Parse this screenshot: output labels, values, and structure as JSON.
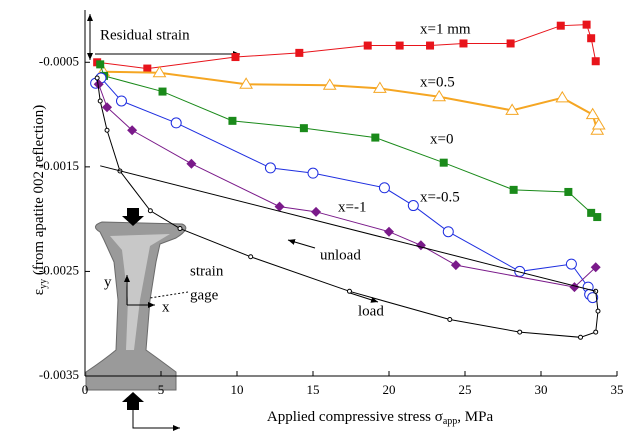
{
  "chart_data": {
    "type": "line",
    "x_label": {
      "text": "Applied compressive stress σ",
      "sub": "app",
      "tail": ", MPa"
    },
    "y_label": {
      "text": "ε",
      "sub": "yy",
      "tail": " (from apatite 002 reflection)"
    },
    "xlim": [
      0,
      35
    ],
    "xticks": [
      0,
      5,
      10,
      15,
      20,
      25,
      30,
      35
    ],
    "ylim": [
      -0.0035,
      0
    ],
    "yticks": [
      -0.0005,
      -0.0015,
      -0.0025,
      -0.0035
    ],
    "annotations": [
      "Residual strain",
      "strain",
      "gage",
      "y",
      "x"
    ],
    "series": [
      {
        "name": "x=1 mm",
        "color": "#e8141b",
        "marker": "square",
        "x": [
          0.8,
          4.1,
          9.9,
          14.1,
          18.6,
          20.7,
          22.7,
          24.9,
          28.0,
          31.3,
          33.0,
          33.3,
          33.6
        ],
        "values": [
          -0.0005,
          -0.00056,
          -0.00045,
          -0.00041,
          -0.00034,
          -0.00034,
          -0.00034,
          -0.00032,
          -0.00032,
          -0.00015,
          -0.00014,
          -0.00027,
          -0.00049
        ]
      },
      {
        "name": "x=0.5",
        "color": "#f5a623",
        "marker": "triangle",
        "x": [
          1.2,
          4.9,
          10.6,
          16.1,
          19.4,
          23.3,
          28.1,
          31.4,
          33.4,
          33.7,
          33.8
        ],
        "values": [
          -0.00059,
          -0.0006,
          -0.00071,
          -0.00072,
          -0.00075,
          -0.00083,
          -0.00096,
          -0.00084,
          -0.001,
          -0.00115,
          -0.0011
        ]
      },
      {
        "name": "x=0",
        "color": "#1a8a1a",
        "marker": "square",
        "x": [
          1.0,
          1.25,
          5.1,
          9.7,
          14.4,
          19.1,
          23.6,
          28.2,
          31.8,
          33.3,
          33.7
        ],
        "values": [
          -0.00052,
          -0.00063,
          -0.00078,
          -0.00106,
          -0.00113,
          -0.00122,
          -0.00146,
          -0.00172,
          -0.00174,
          -0.00194,
          -0.00198
        ]
      },
      {
        "name": "x=-0.5",
        "color": "#1f2fe0",
        "marker": "circle",
        "x": [
          0.7,
          1.05,
          2.4,
          6.0,
          12.2,
          15.0,
          19.7,
          21.6,
          23.9,
          28.6,
          32.0,
          33.1,
          33.2,
          33.4
        ],
        "values": [
          -0.0007,
          -0.00065,
          -0.00087,
          -0.00108,
          -0.00151,
          -0.00156,
          -0.0017,
          -0.00187,
          -0.00212,
          -0.0025,
          -0.00243,
          -0.00265,
          -0.00272,
          -0.00275
        ]
      },
      {
        "name": "x=-1",
        "color": "#7a1a8a",
        "marker": "diamond",
        "x": [
          0.9,
          1.45,
          3.1,
          7.0,
          12.8,
          15.2,
          20.0,
          22.1,
          24.4,
          32.2,
          33.6
        ],
        "values": [
          -0.00071,
          -0.00093,
          -0.00115,
          -0.00147,
          -0.00188,
          -0.00193,
          -0.00212,
          -0.00225,
          -0.00244,
          -0.00265,
          -0.00246
        ]
      },
      {
        "name": "load",
        "color": "#000000",
        "marker": "small-circle",
        "x": [
          0.8,
          1.0,
          1.45,
          2.3,
          4.3,
          6.25,
          10.9,
          17.4,
          24.0,
          28.6,
          32.6,
          33.6,
          33.75,
          33.6
        ],
        "values": [
          -0.00065,
          -0.00087,
          -0.00115,
          -0.00154,
          -0.00192,
          -0.00209,
          -0.00236,
          -0.00269,
          -0.00296,
          -0.00308,
          -0.00313,
          -0.00308,
          -0.00288,
          -0.00269
        ]
      },
      {
        "name": "unload",
        "color": "#000000",
        "marker": "none",
        "x": [
          33.6,
          1.0
        ],
        "values": [
          -0.00269,
          -0.00149
        ]
      }
    ]
  }
}
